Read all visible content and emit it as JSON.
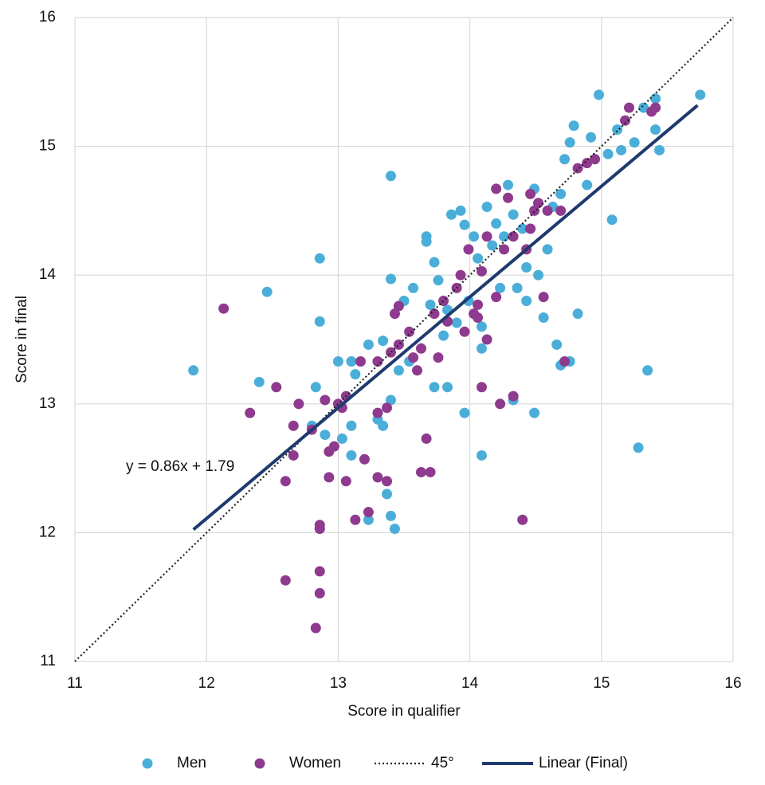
{
  "chart_data": {
    "type": "scatter",
    "xlabel": "Score in qualifier",
    "ylabel": "Score in final",
    "annotation": "y = 0.86x + 1.79",
    "xlim": [
      11,
      16
    ],
    "ylim": [
      11,
      16
    ],
    "xticks": [
      11,
      12,
      13,
      14,
      15,
      16
    ],
    "yticks": [
      11,
      12,
      13,
      14,
      15,
      16
    ],
    "grid": true,
    "legend": "bottom",
    "series": [
      {
        "name": "Men",
        "color": "#4aaed9",
        "mode": "markers",
        "x": [
          11.9,
          12.4,
          12.46,
          12.86,
          12.86,
          12.83,
          12.8,
          12.9,
          13.0,
          13.03,
          13.1,
          13.1,
          13.1,
          13.13,
          13.23,
          13.23,
          13.3,
          13.34,
          13.34,
          13.37,
          13.4,
          13.43,
          13.4,
          13.4,
          13.4,
          13.46,
          13.5,
          13.57,
          13.54,
          13.67,
          13.67,
          13.7,
          13.73,
          13.73,
          13.76,
          13.8,
          13.83,
          13.83,
          13.86,
          13.9,
          13.93,
          13.96,
          13.96,
          13.99,
          14.03,
          14.06,
          14.09,
          14.09,
          14.09,
          14.13,
          14.17,
          14.2,
          14.23,
          14.26,
          14.29,
          14.33,
          14.33,
          14.36,
          14.4,
          14.43,
          14.43,
          14.49,
          14.49,
          14.52,
          14.56,
          14.59,
          14.63,
          14.66,
          14.69,
          14.69,
          14.72,
          14.76,
          14.76,
          14.79,
          14.82,
          14.89,
          14.92,
          14.98,
          15.05,
          15.08,
          15.12,
          15.15,
          15.25,
          15.28,
          15.32,
          15.35,
          15.41,
          15.41,
          15.44,
          15.75
        ],
        "values": [
          13.26,
          13.17,
          13.87,
          14.13,
          13.64,
          13.13,
          12.83,
          12.76,
          13.33,
          12.73,
          13.33,
          12.83,
          12.6,
          13.23,
          13.46,
          12.1,
          12.88,
          13.49,
          12.83,
          12.3,
          12.13,
          12.03,
          14.77,
          13.97,
          13.03,
          13.26,
          13.8,
          13.9,
          13.33,
          14.3,
          14.26,
          13.77,
          14.1,
          13.13,
          13.96,
          13.53,
          13.73,
          13.13,
          14.47,
          13.63,
          14.5,
          14.39,
          12.93,
          13.8,
          14.3,
          14.13,
          13.6,
          13.43,
          12.6,
          14.53,
          14.23,
          14.4,
          13.9,
          14.3,
          14.7,
          14.47,
          13.03,
          13.9,
          14.36,
          14.06,
          13.8,
          12.93,
          14.67,
          14.0,
          13.67,
          14.2,
          14.53,
          13.46,
          13.3,
          14.63,
          14.9,
          13.33,
          15.03,
          15.16,
          13.7,
          14.7,
          15.07,
          15.4,
          14.94,
          14.43,
          15.13,
          14.97,
          15.03,
          12.66,
          15.3,
          13.26,
          15.13,
          15.37,
          14.97,
          15.4
        ]
      },
      {
        "name": "Women",
        "color": "#8e3a8e",
        "mode": "markers",
        "x": [
          12.13,
          12.33,
          12.53,
          12.6,
          12.6,
          12.66,
          12.66,
          12.7,
          12.8,
          12.83,
          12.86,
          12.86,
          12.86,
          12.86,
          12.9,
          12.93,
          12.93,
          12.97,
          13.0,
          13.03,
          13.06,
          13.06,
          13.13,
          13.17,
          13.2,
          13.23,
          13.3,
          13.3,
          13.3,
          13.37,
          13.37,
          13.4,
          13.43,
          13.46,
          13.46,
          13.54,
          13.57,
          13.6,
          13.63,
          13.63,
          13.67,
          13.7,
          13.73,
          13.76,
          13.8,
          13.83,
          13.9,
          13.93,
          13.96,
          13.99,
          14.03,
          14.06,
          14.06,
          14.09,
          14.09,
          14.13,
          14.13,
          14.2,
          14.2,
          14.23,
          14.26,
          14.29,
          14.33,
          14.33,
          14.4,
          14.43,
          14.46,
          14.46,
          14.49,
          14.52,
          14.56,
          14.59,
          14.69,
          14.72,
          14.82,
          14.89,
          14.95,
          15.18,
          15.21,
          15.38,
          15.41
        ],
        "values": [
          13.74,
          12.93,
          13.13,
          12.4,
          11.63,
          12.83,
          12.6,
          13.0,
          12.8,
          11.26,
          12.03,
          12.06,
          11.7,
          11.53,
          13.03,
          12.63,
          12.43,
          12.67,
          13.0,
          12.97,
          13.06,
          12.4,
          12.1,
          13.33,
          12.57,
          12.16,
          12.93,
          12.43,
          13.33,
          12.97,
          12.4,
          13.4,
          13.7,
          13.46,
          13.76,
          13.56,
          13.36,
          13.26,
          13.43,
          12.47,
          12.73,
          12.47,
          13.7,
          13.36,
          13.8,
          13.64,
          13.9,
          14.0,
          13.56,
          14.2,
          13.7,
          13.67,
          13.77,
          14.03,
          13.13,
          13.5,
          14.3,
          13.83,
          14.67,
          13.0,
          14.2,
          14.6,
          14.3,
          13.06,
          12.1,
          14.2,
          14.63,
          14.36,
          14.5,
          14.56,
          13.83,
          14.5,
          14.5,
          13.33,
          14.83,
          14.87,
          14.9,
          15.2,
          15.3,
          15.27,
          15.3
        ]
      },
      {
        "name": "45°",
        "color": "#222222",
        "mode": "line",
        "line_style": "dotted",
        "x": [
          11,
          16
        ],
        "values": [
          11,
          16
        ]
      },
      {
        "name": "Linear (Final)",
        "color": "#1f3a6e",
        "mode": "line",
        "line_style": "solid",
        "x": [
          11.9,
          15.73
        ],
        "values": [
          12.024,
          15.318
        ]
      }
    ]
  }
}
